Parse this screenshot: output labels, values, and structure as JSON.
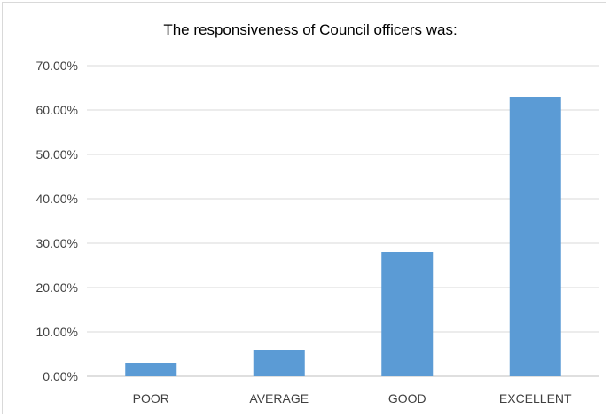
{
  "chart_data": {
    "type": "bar",
    "title": "The responsiveness of Council officers was:",
    "xlabel": "",
    "ylabel": "",
    "categories": [
      "POOR",
      "AVERAGE",
      "GOOD",
      "EXCELLENT"
    ],
    "values": [
      3.0,
      6.0,
      28.0,
      63.0
    ],
    "ylim": [
      0,
      70
    ],
    "yticks": [
      "0.00%",
      "10.00%",
      "20.00%",
      "30.00%",
      "40.00%",
      "50.00%",
      "60.00%",
      "70.00%"
    ],
    "grid": true,
    "legend": "none",
    "bar_color": "#5b9bd5",
    "grid_color": "#d9d9d9"
  }
}
